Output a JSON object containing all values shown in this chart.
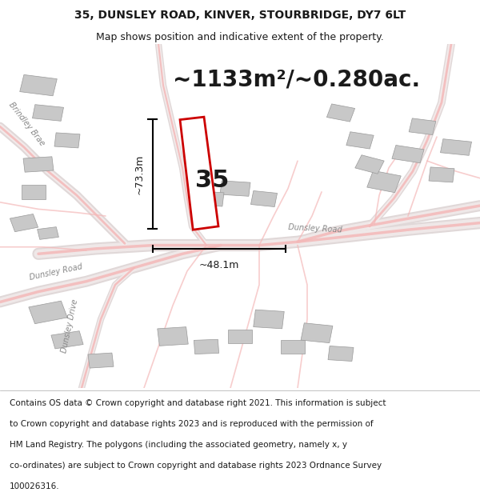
{
  "title_line1": "35, DUNSLEY ROAD, KINVER, STOURBRIDGE, DY7 6LT",
  "title_line2": "Map shows position and indicative extent of the property.",
  "area_text": "~1133m²/~0.280ac.",
  "property_number": "35",
  "dim_height": "~73.3m",
  "dim_width": "~48.1m",
  "footer_lines": [
    "Contains OS data © Crown copyright and database right 2021. This information is subject",
    "to Crown copyright and database rights 2023 and is reproduced with the permission of",
    "HM Land Registry. The polygons (including the associated geometry, namely x, y",
    "co-ordinates) are subject to Crown copyright and database rights 2023 Ordnance Survey",
    "100026316."
  ],
  "bg_color": "#ffffff",
  "map_bg": "#faf7f7",
  "road_color": "#f4b8b8",
  "building_color": "#c8c8c8",
  "plot_color": "#cc0000",
  "plot_fill": "#ffffff",
  "text_color": "#1a1a1a",
  "road_label_color": "#888888",
  "title_fontsize": 10,
  "subtitle_fontsize": 9,
  "area_fontsize": 20,
  "footer_fontsize": 7.5
}
